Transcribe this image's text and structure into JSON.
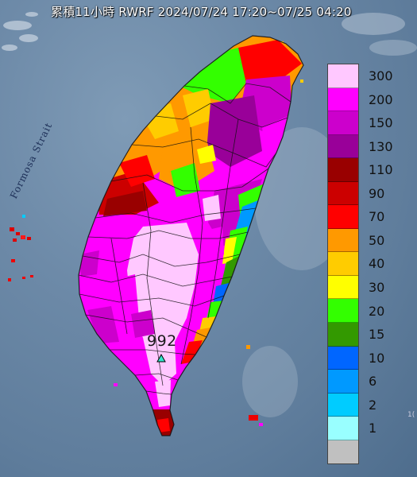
{
  "title": "累積11小時 RWRF 2024/07/24 17:20~07/25 04:20",
  "strait_label": "Formosa Strait",
  "max_value": "992",
  "edge_label": "1(",
  "legend": [
    {
      "label": "300",
      "color": "#ffc8ff"
    },
    {
      "label": "200",
      "color": "#ff00ff"
    },
    {
      "label": "150",
      "color": "#cc00cc"
    },
    {
      "label": "130",
      "color": "#990099"
    },
    {
      "label": "110",
      "color": "#990000"
    },
    {
      "label": "90",
      "color": "#cc0000"
    },
    {
      "label": "70",
      "color": "#ff0000"
    },
    {
      "label": "50",
      "color": "#ff9900"
    },
    {
      "label": "40",
      "color": "#ffcc00"
    },
    {
      "label": "30",
      "color": "#ffff00"
    },
    {
      "label": "20",
      "color": "#33ff00"
    },
    {
      "label": "15",
      "color": "#339900"
    },
    {
      "label": "10",
      "color": "#0066ff"
    },
    {
      "label": "6",
      "color": "#0099ff"
    },
    {
      "label": "2",
      "color": "#00ccff"
    },
    {
      "label": "1",
      "color": "#99ffff"
    },
    {
      "label": "",
      "color": "#c0c0c0"
    }
  ]
}
